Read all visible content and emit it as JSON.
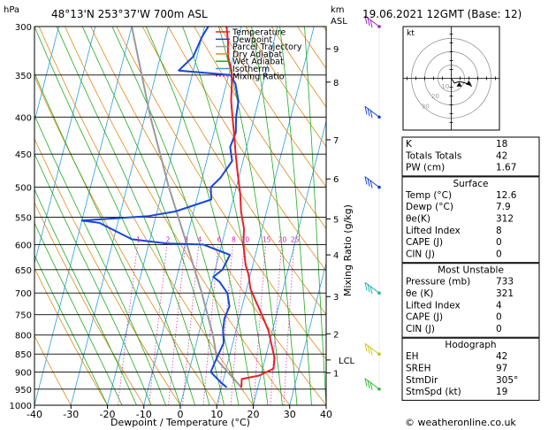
{
  "chart_data": {
    "type": "skew-t",
    "location_title": "48°13'N 253°37'W 700m ASL",
    "datetime_title": "19.06.2021 12GMT (Base: 12)",
    "x_label": "Dewpoint / Temperature (°C)",
    "y_label_left": "hPa",
    "y_label_right_km": "km",
    "y_label_right_asl": "ASL",
    "mixing_ratio_label": "Mixing Ratio (g/kg)",
    "pressure_levels": [
      "300",
      "350",
      "400",
      "450",
      "500",
      "550",
      "600",
      "650",
      "700",
      "750",
      "800",
      "850",
      "900",
      "950",
      "1000"
    ],
    "temp_ticks": [
      "-40",
      "-30",
      "-20",
      "-10",
      "0",
      "10",
      "20",
      "30",
      "40"
    ],
    "xlim": [
      -40,
      40
    ],
    "ylim_hpa": [
      1000,
      300
    ],
    "km_ticks": [
      {
        "label": "9",
        "p": 322
      },
      {
        "label": "8",
        "p": 358
      },
      {
        "label": "7",
        "p": 430
      },
      {
        "label": "6",
        "p": 487
      },
      {
        "label": "5",
        "p": 553
      },
      {
        "label": "4",
        "p": 620
      },
      {
        "label": "3",
        "p": 708
      },
      {
        "label": "2",
        "p": 797
      },
      {
        "label": "1",
        "p": 902
      }
    ],
    "lcl": {
      "label": "LCL",
      "p": 866
    },
    "mixing_ratio_values": [
      "1",
      "2",
      "3",
      "4",
      "6",
      "8",
      "10",
      "15",
      "20",
      "25"
    ],
    "legend": [
      {
        "name": "Temperature",
        "color": "#e8202a",
        "dash": ""
      },
      {
        "name": "Dewpoint",
        "color": "#1a46d8",
        "dash": ""
      },
      {
        "name": "Parcel Trajectory",
        "color": "#9a9a9a",
        "dash": ""
      },
      {
        "name": "Dry Adiabat",
        "color": "#e08a1a",
        "dash": ""
      },
      {
        "name": "Wet Adiabat",
        "color": "#22aa22",
        "dash": ""
      },
      {
        "name": "Isotherm",
        "color": "#2a9ee0",
        "dash": ""
      },
      {
        "name": "Mixing Ratio",
        "color": "#d020b0",
        "dash": "2,2"
      }
    ],
    "temperature": [
      [
        945,
        15.5
      ],
      [
        920,
        15.0
      ],
      [
        910,
        19.5
      ],
      [
        890,
        23.0
      ],
      [
        860,
        22.5
      ],
      [
        820,
        20.5
      ],
      [
        790,
        19.0
      ],
      [
        750,
        16.0
      ],
      [
        720,
        13.5
      ],
      [
        690,
        11.0
      ],
      [
        660,
        9.5
      ],
      [
        640,
        8.0
      ],
      [
        600,
        6.0
      ],
      [
        570,
        5.0
      ],
      [
        540,
        3.0
      ],
      [
        510,
        1.5
      ],
      [
        480,
        -0.5
      ],
      [
        450,
        -2.5
      ],
      [
        420,
        -4.5
      ],
      [
        400,
        -6.0
      ],
      [
        380,
        -7.5
      ],
      [
        360,
        -8.5
      ],
      [
        345,
        -9.5
      ],
      [
        330,
        -11.5
      ],
      [
        315,
        -12.5
      ],
      [
        300,
        -14.0
      ]
    ],
    "dewpoint": [
      [
        945,
        11.5
      ],
      [
        930,
        9.5
      ],
      [
        900,
        6.0
      ],
      [
        870,
        6.5
      ],
      [
        820,
        7.5
      ],
      [
        790,
        6.5
      ],
      [
        760,
        6.0
      ],
      [
        730,
        6.5
      ],
      [
        700,
        5.0
      ],
      [
        675,
        2.0
      ],
      [
        665,
        0.0
      ],
      [
        650,
        2.0
      ],
      [
        620,
        3.0
      ],
      [
        600,
        -5.0
      ],
      [
        598,
        -15.0
      ],
      [
        590,
        -25.0
      ],
      [
        560,
        -35.0
      ],
      [
        556,
        -40.0
      ],
      [
        548,
        -22.0
      ],
      [
        540,
        -15.0
      ],
      [
        520,
        -6.0
      ],
      [
        500,
        -7.0
      ],
      [
        485,
        -5.0
      ],
      [
        460,
        -3.0
      ],
      [
        440,
        -4.5
      ],
      [
        420,
        -4.0
      ],
      [
        400,
        -5.0
      ],
      [
        380,
        -5.5
      ],
      [
        360,
        -7.5
      ],
      [
        350,
        -9.5
      ],
      [
        345,
        -24.0
      ],
      [
        330,
        -21.0
      ],
      [
        310,
        -20.0
      ],
      [
        300,
        -19.0
      ]
    ],
    "parcel": [
      [
        945,
        15.5
      ],
      [
        866,
        6.9
      ],
      [
        800,
        4.0
      ],
      [
        700,
        -2.0
      ],
      [
        600,
        -9.5
      ],
      [
        500,
        -18.5
      ],
      [
        400,
        -28.5
      ],
      [
        300,
        -40.0
      ]
    ],
    "wind_barbs": [
      {
        "p": 300,
        "color": "#a020c0"
      },
      {
        "p": 400,
        "color": "#1a46d8"
      },
      {
        "p": 500,
        "color": "#1a46d8"
      },
      {
        "p": 700,
        "color": "#22b8b0"
      },
      {
        "p": 850,
        "color": "#c8c820"
      },
      {
        "p": 950,
        "color": "#33bb33"
      }
    ],
    "hodograph": {
      "label": "kt",
      "ring_labels": [
        "10",
        "20",
        "30"
      ],
      "trace": [
        [
          0,
          0
        ],
        [
          2,
          -3
        ],
        [
          5,
          -2
        ],
        [
          9,
          -3
        ],
        [
          13,
          -5
        ]
      ],
      "storm_motion": [
        [
          5,
          -4
        ],
        [
          11,
          -3
        ]
      ]
    }
  },
  "indices": [
    {
      "label": "K",
      "value": "18"
    },
    {
      "label": "Totals Totals",
      "value": "42"
    },
    {
      "label": "PW (cm)",
      "value": "1.67"
    }
  ],
  "surface": {
    "title": "Surface",
    "rows": [
      {
        "label": "Temp (°C)",
        "value": "12.6"
      },
      {
        "label": "Dewp (°C)",
        "value": "7.9"
      },
      {
        "label": "θe(K)",
        "value": "312"
      },
      {
        "label": "Lifted Index",
        "value": "8"
      },
      {
        "label": "CAPE (J)",
        "value": "0"
      },
      {
        "label": "CIN (J)",
        "value": "0"
      }
    ]
  },
  "most_unstable": {
    "title": "Most Unstable",
    "rows": [
      {
        "label": "Pressure (mb)",
        "value": "733"
      },
      {
        "label": "θe (K)",
        "value": "321"
      },
      {
        "label": "Lifted Index",
        "value": "4"
      },
      {
        "label": "CAPE (J)",
        "value": "0"
      },
      {
        "label": "CIN (J)",
        "value": "0"
      }
    ]
  },
  "hodograph_table": {
    "title": "Hodograph",
    "rows": [
      {
        "label": "EH",
        "value": "42"
      },
      {
        "label": "SREH",
        "value": "97"
      },
      {
        "label": "StmDir",
        "value": "305°"
      },
      {
        "label": "StmSpd (kt)",
        "value": "19"
      }
    ]
  },
  "footer": "© weatheronline.co.uk"
}
